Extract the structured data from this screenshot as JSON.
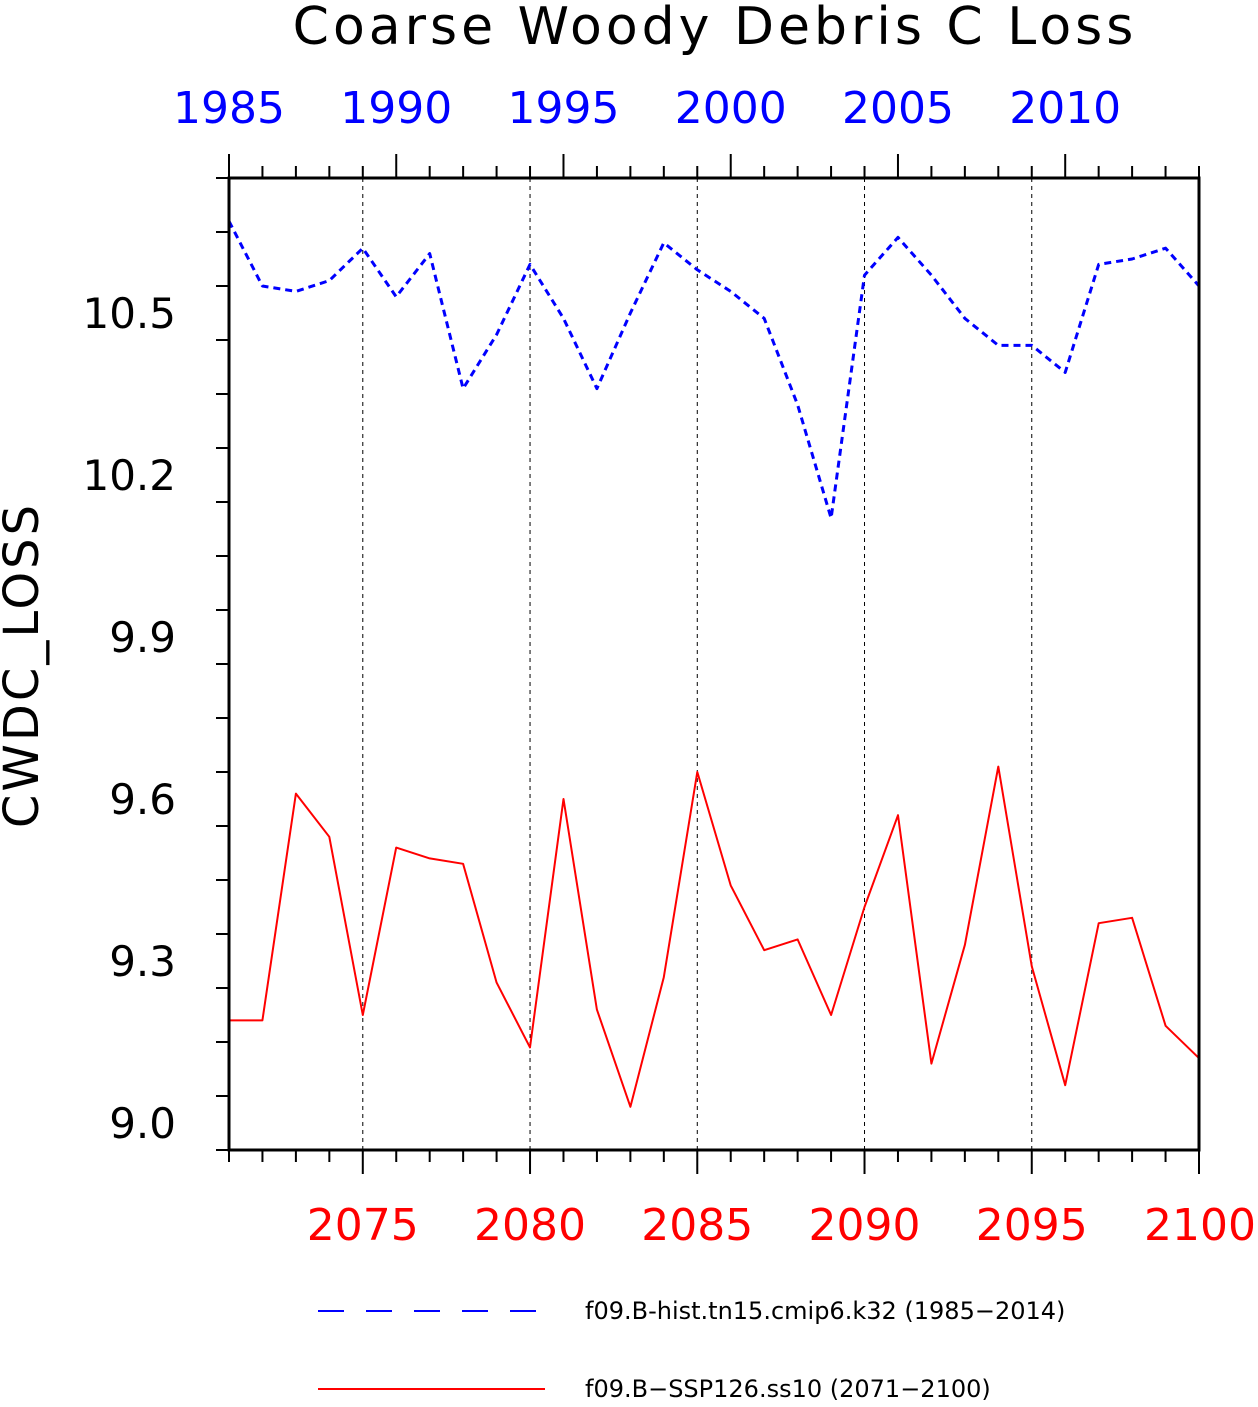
{
  "chart_data": {
    "type": "line",
    "title": "Coarse Woody Debris C Loss",
    "ylabel": "CWDC_LOSS",
    "ylim": [
      8.95,
      10.75
    ],
    "yticks": [
      9.0,
      9.3,
      9.6,
      9.9,
      10.2,
      10.5
    ],
    "ytick_labels": [
      "9.0",
      "9.3",
      "9.6",
      "9.9",
      "10.2",
      "10.5"
    ],
    "grid": "vertical dashed at labeled years",
    "top_axis": {
      "range": [
        1985,
        2014
      ],
      "ticks": [
        1985,
        1990,
        1995,
        2000,
        2005,
        2010
      ],
      "labels": [
        "1985",
        "1990",
        "1995",
        "2000",
        "2005",
        "2010"
      ],
      "color": "#0000ff"
    },
    "bottom_axis": {
      "range": [
        2071,
        2100
      ],
      "ticks": [
        2075,
        2080,
        2085,
        2090,
        2095,
        2100
      ],
      "labels": [
        "2075",
        "2080",
        "2085",
        "2090",
        "2095",
        "2100"
      ],
      "color": "#ff0000"
    },
    "series": [
      {
        "name": "f09.B-hist.tn15.cmip6.k32 (1985-2014)",
        "color": "#0000ff",
        "style": "dashed",
        "axis": "top",
        "x": [
          1985,
          1986,
          1987,
          1988,
          1989,
          1990,
          1991,
          1992,
          1993,
          1994,
          1995,
          1996,
          1997,
          1998,
          1999,
          2000,
          2001,
          2002,
          2003,
          2004,
          2005,
          2006,
          2007,
          2008,
          2009,
          2010,
          2011,
          2012,
          2013,
          2014
        ],
        "values": [
          10.67,
          10.55,
          10.54,
          10.56,
          10.62,
          10.53,
          10.61,
          10.36,
          10.46,
          10.59,
          10.49,
          10.36,
          10.5,
          10.63,
          10.58,
          10.54,
          10.49,
          10.33,
          10.12,
          10.57,
          10.64,
          10.57,
          10.49,
          10.44,
          10.44,
          10.39,
          10.59,
          10.6,
          10.62,
          10.55
        ]
      },
      {
        "name": "f09.B-SSP126.ss10 (2071-2100)",
        "color": "#ff0000",
        "style": "solid",
        "axis": "bottom",
        "x": [
          2071,
          2072,
          2073,
          2074,
          2075,
          2076,
          2077,
          2078,
          2079,
          2080,
          2081,
          2082,
          2083,
          2084,
          2085,
          2086,
          2087,
          2088,
          2089,
          2090,
          2091,
          2092,
          2093,
          2094,
          2095,
          2096,
          2097,
          2098,
          2099,
          2100
        ],
        "values": [
          9.19,
          9.19,
          9.61,
          9.53,
          9.2,
          9.51,
          9.49,
          9.48,
          9.26,
          9.14,
          9.6,
          9.21,
          9.03,
          9.27,
          9.65,
          9.44,
          9.32,
          9.34,
          9.2,
          9.4,
          9.57,
          9.11,
          9.33,
          9.66,
          9.29,
          9.07,
          9.37,
          9.38,
          9.18,
          9.12
        ]
      }
    ]
  },
  "legend": {
    "entries": [
      {
        "label": "f09.B-hist.tn15.cmip6.k32 (1985−2014)",
        "color": "#0000ff",
        "style": "dashed"
      },
      {
        "label": "f09.B−SSP126.ss10 (2071−2100)",
        "color": "#ff0000",
        "style": "solid"
      }
    ]
  },
  "title_text": "Coarse Woody Debris C Loss",
  "ylabel_text": "CWDC_LOSS"
}
